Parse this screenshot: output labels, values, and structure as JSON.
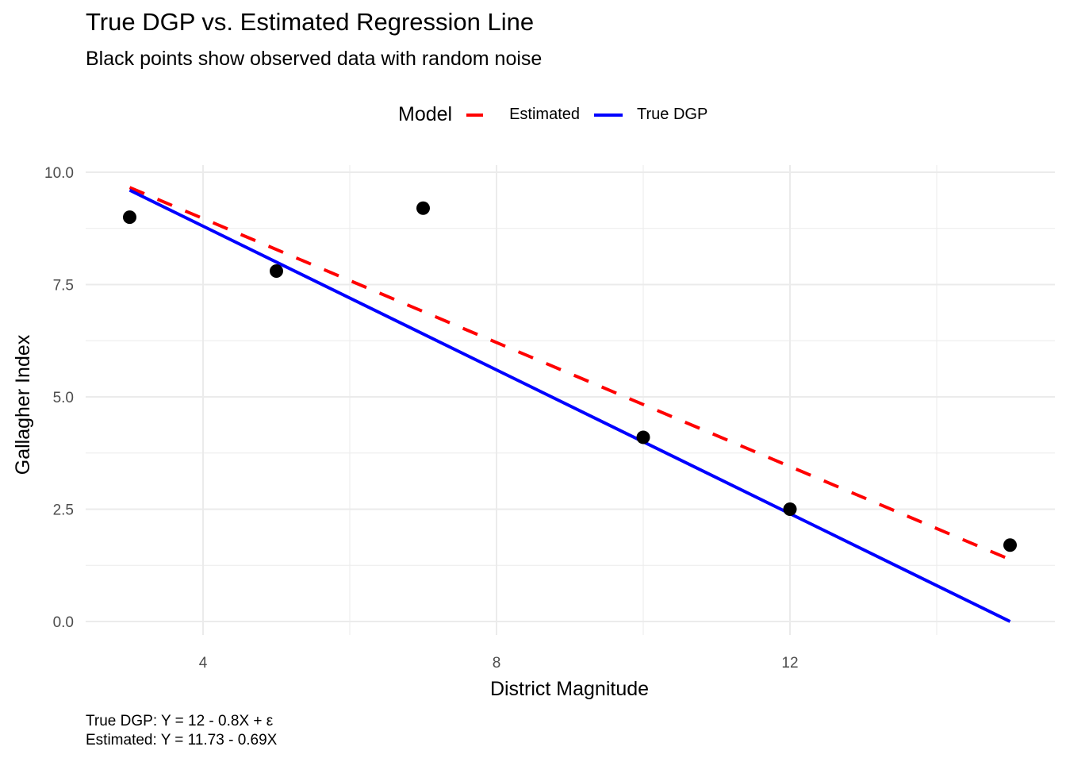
{
  "chart_data": {
    "type": "scatter",
    "title": "True DGP vs. Estimated Regression Line",
    "subtitle": "Black points show observed data with random noise",
    "xlabel": "District Magnitude",
    "ylabel": "Gallagher Index",
    "xlim": [
      2.4,
      15.6
    ],
    "ylim": [
      -0.5,
      10.2
    ],
    "x_ticks": [
      4,
      8,
      12
    ],
    "x_tick_labels": [
      "4",
      "8",
      "12"
    ],
    "x_minor_ticks": [
      6,
      10,
      14
    ],
    "y_ticks": [
      0,
      2.5,
      5,
      7.5,
      10
    ],
    "y_tick_labels": [
      "0.0",
      "2.5",
      "5.0",
      "7.5",
      "10.0"
    ],
    "y_minor_ticks": [
      1.25,
      3.75,
      6.25,
      8.75
    ],
    "grid": true,
    "legend_position": "top",
    "legend_title": "Model",
    "points": {
      "name": "Observed",
      "color": "#000000",
      "x": [
        3,
        5,
        7,
        10,
        12,
        15
      ],
      "y": [
        9.0,
        7.8,
        9.2,
        4.1,
        2.5,
        1.7
      ]
    },
    "series": [
      {
        "name": "Estimated",
        "style": "dashed",
        "color": "#ff0000",
        "intercept": 11.73,
        "slope": -0.69,
        "x_range": [
          3,
          15
        ]
      },
      {
        "name": "True DGP",
        "style": "solid",
        "color": "#0000ff",
        "intercept": 12,
        "slope": -0.8,
        "x_range": [
          3,
          15
        ]
      }
    ],
    "caption": [
      "True DGP: Y = 12 - 0.8X + ε",
      "Estimated: Y = 11.73 - 0.69X"
    ]
  }
}
